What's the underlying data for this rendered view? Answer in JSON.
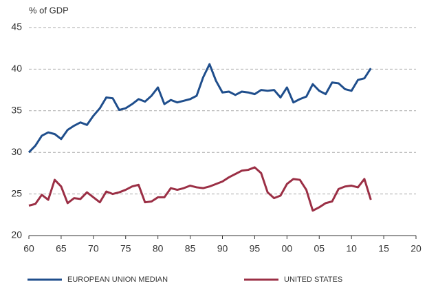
{
  "chart_data": {
    "type": "line",
    "ylabel": "% of GDP",
    "x": [
      1960,
      1961,
      1962,
      1963,
      1964,
      1965,
      1966,
      1967,
      1968,
      1969,
      1970,
      1971,
      1972,
      1973,
      1974,
      1975,
      1976,
      1977,
      1978,
      1979,
      1980,
      1981,
      1982,
      1983,
      1984,
      1985,
      1986,
      1987,
      1988,
      1989,
      1990,
      1991,
      1992,
      1993,
      1994,
      1995,
      1996,
      1997,
      1998,
      1999,
      2000,
      2001,
      2002,
      2003,
      2004,
      2005,
      2006,
      2007,
      2008,
      2009,
      2010,
      2011,
      2012,
      2013
    ],
    "series": [
      {
        "name": "EUROPEAN UNION MEDIAN",
        "color": "#1f4e8c",
        "values": [
          30.0,
          30.8,
          32.0,
          32.4,
          32.2,
          31.6,
          32.7,
          33.2,
          33.6,
          33.3,
          34.4,
          35.3,
          36.6,
          36.5,
          35.1,
          35.3,
          35.8,
          36.4,
          36.1,
          36.8,
          37.8,
          35.8,
          36.3,
          36.0,
          36.2,
          36.4,
          36.8,
          39.0,
          40.6,
          38.6,
          37.2,
          37.3,
          36.9,
          37.3,
          37.2,
          37.0,
          37.5,
          37.4,
          37.5,
          36.6,
          37.8,
          36.0,
          36.4,
          36.7,
          38.2,
          37.4,
          37.0,
          38.4,
          38.3,
          37.6,
          37.4,
          38.7,
          38.9,
          40.1
        ]
      },
      {
        "name": "UNITED STATES",
        "color": "#9b2f45",
        "values": [
          23.6,
          23.8,
          24.9,
          24.3,
          26.7,
          25.9,
          23.9,
          24.5,
          24.4,
          25.2,
          24.6,
          24.0,
          25.3,
          25.0,
          25.2,
          25.5,
          25.9,
          26.1,
          24.0,
          24.1,
          24.6,
          24.6,
          25.7,
          25.5,
          25.7,
          26.0,
          25.8,
          25.7,
          25.9,
          26.2,
          26.5,
          27.0,
          27.4,
          27.8,
          27.9,
          28.2,
          27.5,
          25.2,
          24.5,
          24.8,
          26.2,
          26.8,
          26.7,
          25.5,
          23.0,
          23.4,
          23.9,
          24.1,
          25.6,
          25.9,
          26.0,
          25.8,
          26.8,
          24.3
        ]
      }
    ],
    "xlim": [
      1960,
      2020
    ],
    "xticks": [
      {
        "value": 1960,
        "label": "60"
      },
      {
        "value": 1965,
        "label": "65"
      },
      {
        "value": 1970,
        "label": "70"
      },
      {
        "value": 1975,
        "label": "75"
      },
      {
        "value": 1980,
        "label": "80"
      },
      {
        "value": 1985,
        "label": "85"
      },
      {
        "value": 1990,
        "label": "90"
      },
      {
        "value": 1995,
        "label": "95"
      },
      {
        "value": 2000,
        "label": "00"
      },
      {
        "value": 2005,
        "label": "05"
      },
      {
        "value": 2010,
        "label": "10"
      },
      {
        "value": 2015,
        "label": "15"
      },
      {
        "value": 2020,
        "label": "20"
      }
    ],
    "ylim": [
      20,
      45
    ],
    "yticks": [
      20,
      25,
      30,
      35,
      40,
      45
    ],
    "grid": true
  }
}
